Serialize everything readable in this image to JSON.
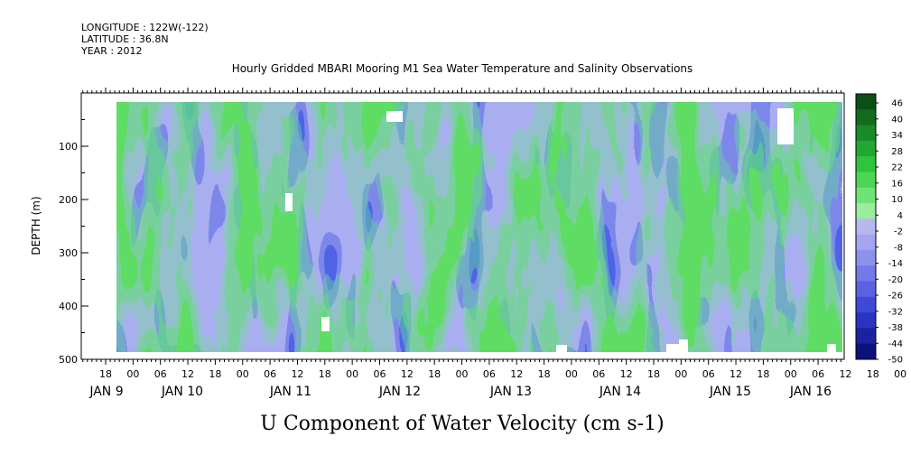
{
  "header": {
    "longitude": "LONGITUDE : 122W(-122)",
    "latitude": "LATITUDE : 36.8N",
    "year": "YEAR : 2012"
  },
  "chart_data": {
    "type": "heatmap",
    "title": "Hourly Gridded MBARI Mooring M1 Sea Water Temperature and Salinity Observations",
    "subtitle": "U Component of Water Velocity (cm s-1)",
    "ylabel": "DEPTH (m)",
    "ylim": [
      500,
      0
    ],
    "y_ticks": [
      100,
      200,
      300,
      400,
      500
    ],
    "x_hour_ticks": [
      "18",
      "00",
      "06",
      "12",
      "18",
      "00",
      "06",
      "12",
      "18",
      "00",
      "06",
      "12",
      "18",
      "00",
      "06",
      "12",
      "18",
      "00",
      "06",
      "12",
      "18",
      "00",
      "06",
      "12",
      "18",
      "00",
      "06",
      "12",
      "18",
      "00",
      "06"
    ],
    "x_day_labels": [
      "JAN  9",
      "JAN 10",
      "JAN 11",
      "JAN 12",
      "JAN 13",
      "JAN 14",
      "JAN 15",
      "JAN 16"
    ],
    "colorbar": {
      "labels": [
        "46",
        "40",
        "34",
        "28",
        "22",
        "16",
        "10",
        "4",
        "-2",
        "-8",
        "-14",
        "-20",
        "-26",
        "-32",
        "-38",
        "-44",
        "-50"
      ],
      "colors": [
        "#0b4f16",
        "#126b1f",
        "#1a8a28",
        "#22a832",
        "#2fc43e",
        "#4bd655",
        "#6fe277",
        "#9aec9e",
        "#b7b8ee",
        "#a3a6ee",
        "#8c91ec",
        "#7379e8",
        "#5a62e3",
        "#3f49d8",
        "#2a33c2",
        "#1a22a0",
        "#0c1378"
      ]
    },
    "depth_range_data": [
      20,
      485
    ],
    "time_range_data": [
      "JAN 8 20:00",
      "JAN 16 11:00"
    ]
  }
}
